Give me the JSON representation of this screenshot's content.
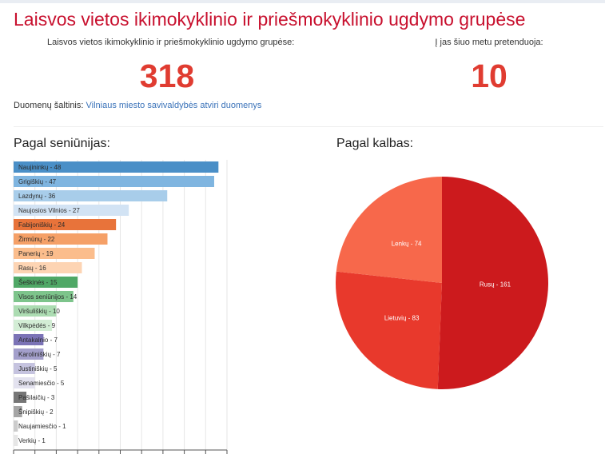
{
  "page": {
    "title": "Laisvos vietos ikimokyklinio ir priešmokyklinio ugdymo grupėse",
    "stats": [
      {
        "label": "Laisvos vietos ikimokyklinio ir priešmokyklinio ugdymo grupėse:",
        "value": "318"
      },
      {
        "label": "Į jas šiuo metu pretenduoja:",
        "value": "10"
      }
    ],
    "source": {
      "label": "Duomenų šaltinis:",
      "link_text": "Vilniaus miesto savivaldybės atviri duomenys"
    }
  },
  "chart_data": [
    {
      "type": "bar",
      "orientation": "horizontal",
      "title": "Pagal seniūnijas:",
      "xlim": [
        0,
        50
      ],
      "grid": true,
      "categories": [
        "Naujininkų",
        "Grigiškių",
        "Lazdynų",
        "Naujosios Vilnios",
        "Fabijoniškių",
        "Žirmūnų",
        "Panerių",
        "Rasų",
        "Šeškinės",
        "Visos seniūnijos",
        "Viršuliškių",
        "Vilkpėdės",
        "Antakalnio",
        "Karoliniškių",
        "Justiniškių",
        "Senamiesčio",
        "Pašilaičių",
        "Šnipiškių",
        "Naujamiesčio",
        "Verkių"
      ],
      "values": [
        48,
        47,
        36,
        27,
        24,
        22,
        19,
        16,
        15,
        14,
        10,
        9,
        7,
        7,
        5,
        5,
        3,
        2,
        1,
        1
      ],
      "labels": [
        "Naujininkų - 48",
        "Grigiškių - 47",
        "Lazdynų - 36",
        "Naujosios Vilnios - 27",
        "Fabijoniškių - 24",
        "Žirmūnų - 22",
        "Panerių - 19",
        "Rasų - 16",
        "Šeškinės - 15",
        "Visos seniūnijos - 14",
        "Viršuliškių - 10",
        "Vilkpėdės - 9",
        "Antakalnio - 7",
        "Karoliniškių - 7",
        "Justiniškių - 5",
        "Senamiesčio - 5",
        "Pašilaičių - 3",
        "Šnipiškių - 2",
        "Naujamiesčio - 1",
        "Verkių - 1"
      ],
      "colors": [
        "#4a8fc7",
        "#7fb5e0",
        "#a8cdea",
        "#d2e3f4",
        "#e8733a",
        "#f5a067",
        "#fbbd8c",
        "#fdd4b3",
        "#4fa866",
        "#7dc48b",
        "#acdcb2",
        "#d3edd5",
        "#7b73b6",
        "#a39fcb",
        "#c5c3df",
        "#e3e2ef",
        "#767676",
        "#a5a5a5",
        "#cbcbcb",
        "#e6e6e6"
      ]
    },
    {
      "type": "pie",
      "title": "Pagal kalbas:",
      "slices": [
        {
          "label": "Rusų - 161",
          "value": 161,
          "color": "#cc1a1d"
        },
        {
          "label": "Lietuvių - 83",
          "value": 83,
          "color": "#e8392c"
        },
        {
          "label": "Lenkų - 74",
          "value": 74,
          "color": "#f7684b"
        }
      ]
    }
  ]
}
